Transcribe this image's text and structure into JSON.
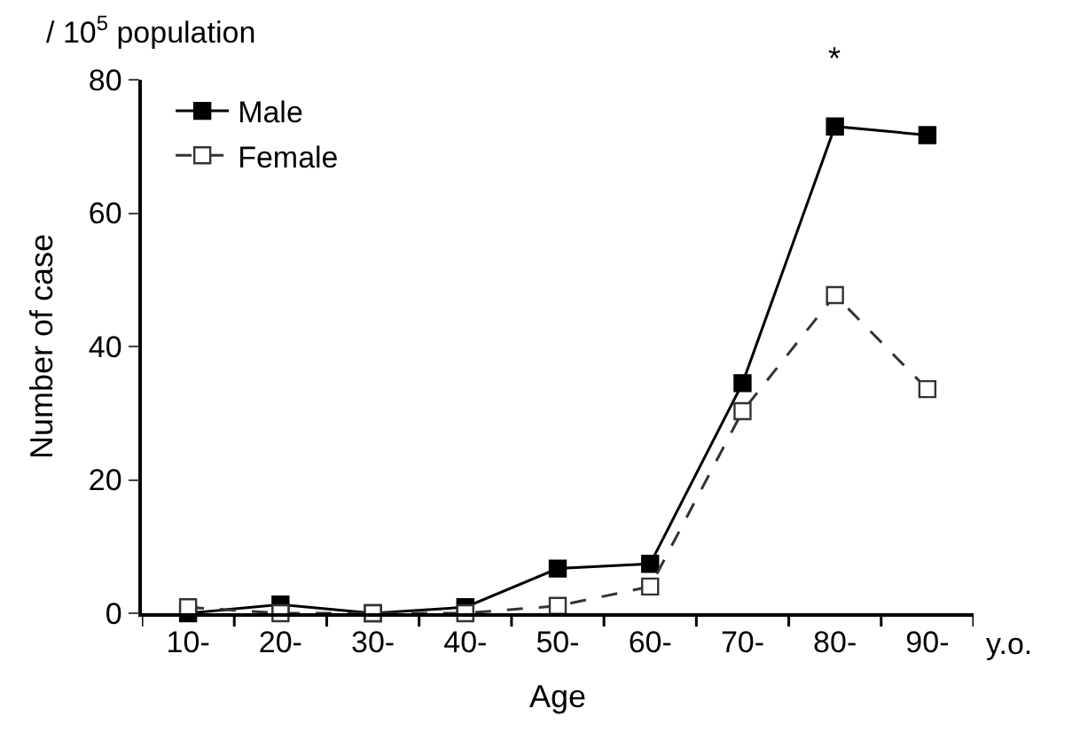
{
  "chart_data": {
    "type": "line",
    "xlabel": "Age",
    "ylabel": "Number of case",
    "categories": [
      "10-",
      "20-",
      "30-",
      "40-",
      "50-",
      "60-",
      "70-",
      "80-",
      "90-"
    ],
    "series": [
      {
        "name": "Male",
        "color": "#000000",
        "line_style": "solid",
        "values": [
          0,
          1.3,
          0,
          0.9,
          6.7,
          7.4,
          34.5,
          73,
          71.7
        ]
      },
      {
        "name": "Female",
        "color": "#333333",
        "line_style": "dashed",
        "values": [
          0.9,
          0,
          0,
          0,
          1.1,
          4.0,
          30.3,
          47.7,
          33.6
        ]
      }
    ],
    "ylim": [
      0,
      80
    ],
    "yticks": [
      0,
      20,
      40,
      60,
      80
    ],
    "legend": "top left",
    "marker": "square",
    "annotations": [
      "/ 10$^{5}$ population",
      "y.o.",
      "*"
    ]
  }
}
